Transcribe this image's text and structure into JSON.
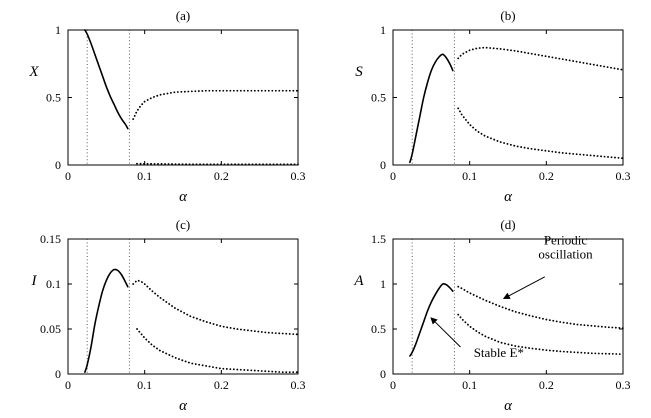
{
  "figure": {
    "background": "#ffffff",
    "line_color": "#000000",
    "panel_titles": [
      "(a)",
      "(b)",
      "(c)",
      "(d)"
    ]
  },
  "chart_data": [
    {
      "id": "a",
      "type": "line",
      "title": "(a)",
      "ylabel": "X",
      "xlabel": "α",
      "xlim": [
        0,
        0.3
      ],
      "ylim": [
        0,
        1
      ],
      "xticks": [
        0,
        0.1,
        0.2,
        0.3
      ],
      "xtick_labels": [
        "0",
        "0.1",
        "0.2",
        "0.3"
      ],
      "yticks": [
        0,
        0.5,
        1
      ],
      "ytick_labels": [
        "0",
        "0.5",
        "1"
      ],
      "vlines": [
        0.025,
        0.08
      ],
      "series": [
        {
          "name": "stable-branch",
          "style": "solid",
          "points": [
            [
              0.022,
              1.0
            ],
            [
              0.025,
              0.97
            ],
            [
              0.03,
              0.9
            ],
            [
              0.035,
              0.82
            ],
            [
              0.04,
              0.74
            ],
            [
              0.045,
              0.66
            ],
            [
              0.05,
              0.58
            ],
            [
              0.055,
              0.51
            ],
            [
              0.06,
              0.45
            ],
            [
              0.065,
              0.39
            ],
            [
              0.07,
              0.34
            ],
            [
              0.075,
              0.3
            ],
            [
              0.078,
              0.27
            ]
          ]
        },
        {
          "name": "periodic-upper",
          "style": "dotted",
          "points": [
            [
              0.085,
              0.34
            ],
            [
              0.09,
              0.4
            ],
            [
              0.095,
              0.44
            ],
            [
              0.1,
              0.47
            ],
            [
              0.11,
              0.5
            ],
            [
              0.12,
              0.52
            ],
            [
              0.13,
              0.53
            ],
            [
              0.14,
              0.54
            ],
            [
              0.16,
              0.545
            ],
            [
              0.18,
              0.55
            ],
            [
              0.2,
              0.55
            ],
            [
              0.22,
              0.55
            ],
            [
              0.24,
              0.55
            ],
            [
              0.26,
              0.55
            ],
            [
              0.28,
              0.55
            ],
            [
              0.3,
              0.55
            ]
          ]
        },
        {
          "name": "periodic-lower",
          "style": "dotted",
          "points": [
            [
              0.09,
              0.01
            ],
            [
              0.12,
              0.008
            ],
            [
              0.15,
              0.006
            ],
            [
              0.18,
              0.005
            ],
            [
              0.21,
              0.005
            ],
            [
              0.24,
              0.005
            ],
            [
              0.27,
              0.005
            ],
            [
              0.3,
              0.005
            ]
          ]
        }
      ],
      "annotations": []
    },
    {
      "id": "b",
      "type": "line",
      "title": "(b)",
      "ylabel": "S",
      "xlabel": "α",
      "xlim": [
        0,
        0.3
      ],
      "ylim": [
        0,
        1
      ],
      "xticks": [
        0,
        0.1,
        0.2,
        0.3
      ],
      "xtick_labels": [
        "0",
        "0.1",
        "0.2",
        "0.3"
      ],
      "yticks": [
        0,
        0.5,
        1
      ],
      "ytick_labels": [
        "0",
        "0.5",
        "1"
      ],
      "vlines": [
        0.025,
        0.08
      ],
      "series": [
        {
          "name": "stable-branch",
          "style": "solid",
          "points": [
            [
              0.022,
              0.02
            ],
            [
              0.025,
              0.08
            ],
            [
              0.03,
              0.22
            ],
            [
              0.035,
              0.36
            ],
            [
              0.04,
              0.5
            ],
            [
              0.045,
              0.61
            ],
            [
              0.05,
              0.7
            ],
            [
              0.055,
              0.76
            ],
            [
              0.06,
              0.8
            ],
            [
              0.065,
              0.82
            ],
            [
              0.07,
              0.79
            ],
            [
              0.075,
              0.74
            ],
            [
              0.078,
              0.7
            ]
          ]
        },
        {
          "name": "periodic-upper",
          "style": "dotted",
          "points": [
            [
              0.085,
              0.79
            ],
            [
              0.09,
              0.82
            ],
            [
              0.1,
              0.85
            ],
            [
              0.11,
              0.865
            ],
            [
              0.12,
              0.87
            ],
            [
              0.14,
              0.86
            ],
            [
              0.16,
              0.845
            ],
            [
              0.18,
              0.825
            ],
            [
              0.2,
              0.805
            ],
            [
              0.22,
              0.785
            ],
            [
              0.24,
              0.765
            ],
            [
              0.26,
              0.745
            ],
            [
              0.28,
              0.725
            ],
            [
              0.3,
              0.705
            ]
          ]
        },
        {
          "name": "periodic-lower",
          "style": "dotted",
          "points": [
            [
              0.085,
              0.42
            ],
            [
              0.09,
              0.37
            ],
            [
              0.1,
              0.3
            ],
            [
              0.11,
              0.25
            ],
            [
              0.12,
              0.215
            ],
            [
              0.14,
              0.17
            ],
            [
              0.16,
              0.14
            ],
            [
              0.18,
              0.12
            ],
            [
              0.2,
              0.105
            ],
            [
              0.22,
              0.09
            ],
            [
              0.24,
              0.08
            ],
            [
              0.26,
              0.07
            ],
            [
              0.28,
              0.06
            ],
            [
              0.3,
              0.05
            ]
          ]
        }
      ],
      "annotations": []
    },
    {
      "id": "c",
      "type": "line",
      "title": "(c)",
      "ylabel": "I",
      "xlabel": "α",
      "xlim": [
        0,
        0.3
      ],
      "ylim": [
        0,
        0.15
      ],
      "xticks": [
        0,
        0.1,
        0.2,
        0.3
      ],
      "xtick_labels": [
        "0",
        "0.1",
        "0.2",
        "0.3"
      ],
      "yticks": [
        0,
        0.05,
        0.1,
        0.15
      ],
      "ytick_labels": [
        "0",
        "0.05",
        "0.1",
        "0.15"
      ],
      "vlines": [
        0.025,
        0.08
      ],
      "series": [
        {
          "name": "stable-branch",
          "style": "solid",
          "points": [
            [
              0.022,
              0.002
            ],
            [
              0.025,
              0.01
            ],
            [
              0.03,
              0.03
            ],
            [
              0.035,
              0.055
            ],
            [
              0.04,
              0.075
            ],
            [
              0.045,
              0.092
            ],
            [
              0.05,
              0.104
            ],
            [
              0.055,
              0.112
            ],
            [
              0.06,
              0.116
            ],
            [
              0.065,
              0.115
            ],
            [
              0.07,
              0.11
            ],
            [
              0.075,
              0.102
            ],
            [
              0.078,
              0.097
            ]
          ]
        },
        {
          "name": "periodic-upper",
          "style": "dotted",
          "points": [
            [
              0.085,
              0.1
            ],
            [
              0.09,
              0.104
            ],
            [
              0.095,
              0.103
            ],
            [
              0.1,
              0.1
            ],
            [
              0.11,
              0.092
            ],
            [
              0.12,
              0.085
            ],
            [
              0.14,
              0.073
            ],
            [
              0.16,
              0.064
            ],
            [
              0.18,
              0.058
            ],
            [
              0.2,
              0.053
            ],
            [
              0.22,
              0.05
            ],
            [
              0.24,
              0.048
            ],
            [
              0.26,
              0.046
            ],
            [
              0.28,
              0.045
            ],
            [
              0.3,
              0.044
            ]
          ]
        },
        {
          "name": "periodic-lower",
          "style": "dotted",
          "points": [
            [
              0.09,
              0.05
            ],
            [
              0.1,
              0.04
            ],
            [
              0.11,
              0.032
            ],
            [
              0.12,
              0.026
            ],
            [
              0.14,
              0.018
            ],
            [
              0.16,
              0.012
            ],
            [
              0.18,
              0.009
            ],
            [
              0.2,
              0.006
            ],
            [
              0.22,
              0.005
            ],
            [
              0.24,
              0.004
            ],
            [
              0.26,
              0.003
            ],
            [
              0.28,
              0.002
            ],
            [
              0.3,
              0.002
            ]
          ]
        }
      ],
      "annotations": []
    },
    {
      "id": "d",
      "type": "line",
      "title": "(d)",
      "ylabel": "A",
      "xlabel": "α",
      "xlim": [
        0,
        0.3
      ],
      "ylim": [
        0,
        1.5
      ],
      "xticks": [
        0,
        0.1,
        0.2,
        0.3
      ],
      "xtick_labels": [
        "0",
        "0.1",
        "0.2",
        "0.3"
      ],
      "yticks": [
        0,
        0.5,
        1,
        1.5
      ],
      "ytick_labels": [
        "0",
        "0.5",
        "1",
        "1.5"
      ],
      "vlines": [
        0.025,
        0.08
      ],
      "series": [
        {
          "name": "stable-branch",
          "style": "solid",
          "points": [
            [
              0.022,
              0.2
            ],
            [
              0.025,
              0.24
            ],
            [
              0.03,
              0.34
            ],
            [
              0.035,
              0.46
            ],
            [
              0.04,
              0.58
            ],
            [
              0.045,
              0.7
            ],
            [
              0.05,
              0.8
            ],
            [
              0.055,
              0.88
            ],
            [
              0.06,
              0.95
            ],
            [
              0.065,
              1.0
            ],
            [
              0.07,
              0.99
            ],
            [
              0.075,
              0.95
            ],
            [
              0.078,
              0.92
            ]
          ]
        },
        {
          "name": "periodic-upper",
          "style": "dotted",
          "points": [
            [
              0.085,
              0.97
            ],
            [
              0.09,
              0.95
            ],
            [
              0.1,
              0.9
            ],
            [
              0.11,
              0.86
            ],
            [
              0.12,
              0.82
            ],
            [
              0.14,
              0.75
            ],
            [
              0.16,
              0.69
            ],
            [
              0.18,
              0.645
            ],
            [
              0.2,
              0.605
            ],
            [
              0.22,
              0.575
            ],
            [
              0.24,
              0.55
            ],
            [
              0.26,
              0.535
            ],
            [
              0.28,
              0.52
            ],
            [
              0.3,
              0.51
            ]
          ]
        },
        {
          "name": "periodic-lower",
          "style": "dotted",
          "points": [
            [
              0.085,
              0.66
            ],
            [
              0.09,
              0.61
            ],
            [
              0.1,
              0.53
            ],
            [
              0.11,
              0.47
            ],
            [
              0.12,
              0.42
            ],
            [
              0.14,
              0.35
            ],
            [
              0.16,
              0.31
            ],
            [
              0.18,
              0.285
            ],
            [
              0.2,
              0.265
            ],
            [
              0.22,
              0.25
            ],
            [
              0.24,
              0.24
            ],
            [
              0.26,
              0.23
            ],
            [
              0.28,
              0.225
            ],
            [
              0.3,
              0.22
            ]
          ]
        }
      ],
      "annotations": [
        {
          "name": "periodic-oscillation-annotation",
          "lines": [
            "Periodic",
            "oscillation"
          ],
          "x": 0.225,
          "y": 1.44,
          "arrow": {
            "x1": 0.198,
            "y1": 1.08,
            "x2": 0.145,
            "y2": 0.84
          }
        },
        {
          "name": "stable-equilibrium-annotation",
          "lines": [
            "Stable E*"
          ],
          "x": 0.138,
          "y": 0.19,
          "arrow": {
            "x1": 0.088,
            "y1": 0.3,
            "x2": 0.05,
            "y2": 0.62
          }
        }
      ]
    }
  ]
}
